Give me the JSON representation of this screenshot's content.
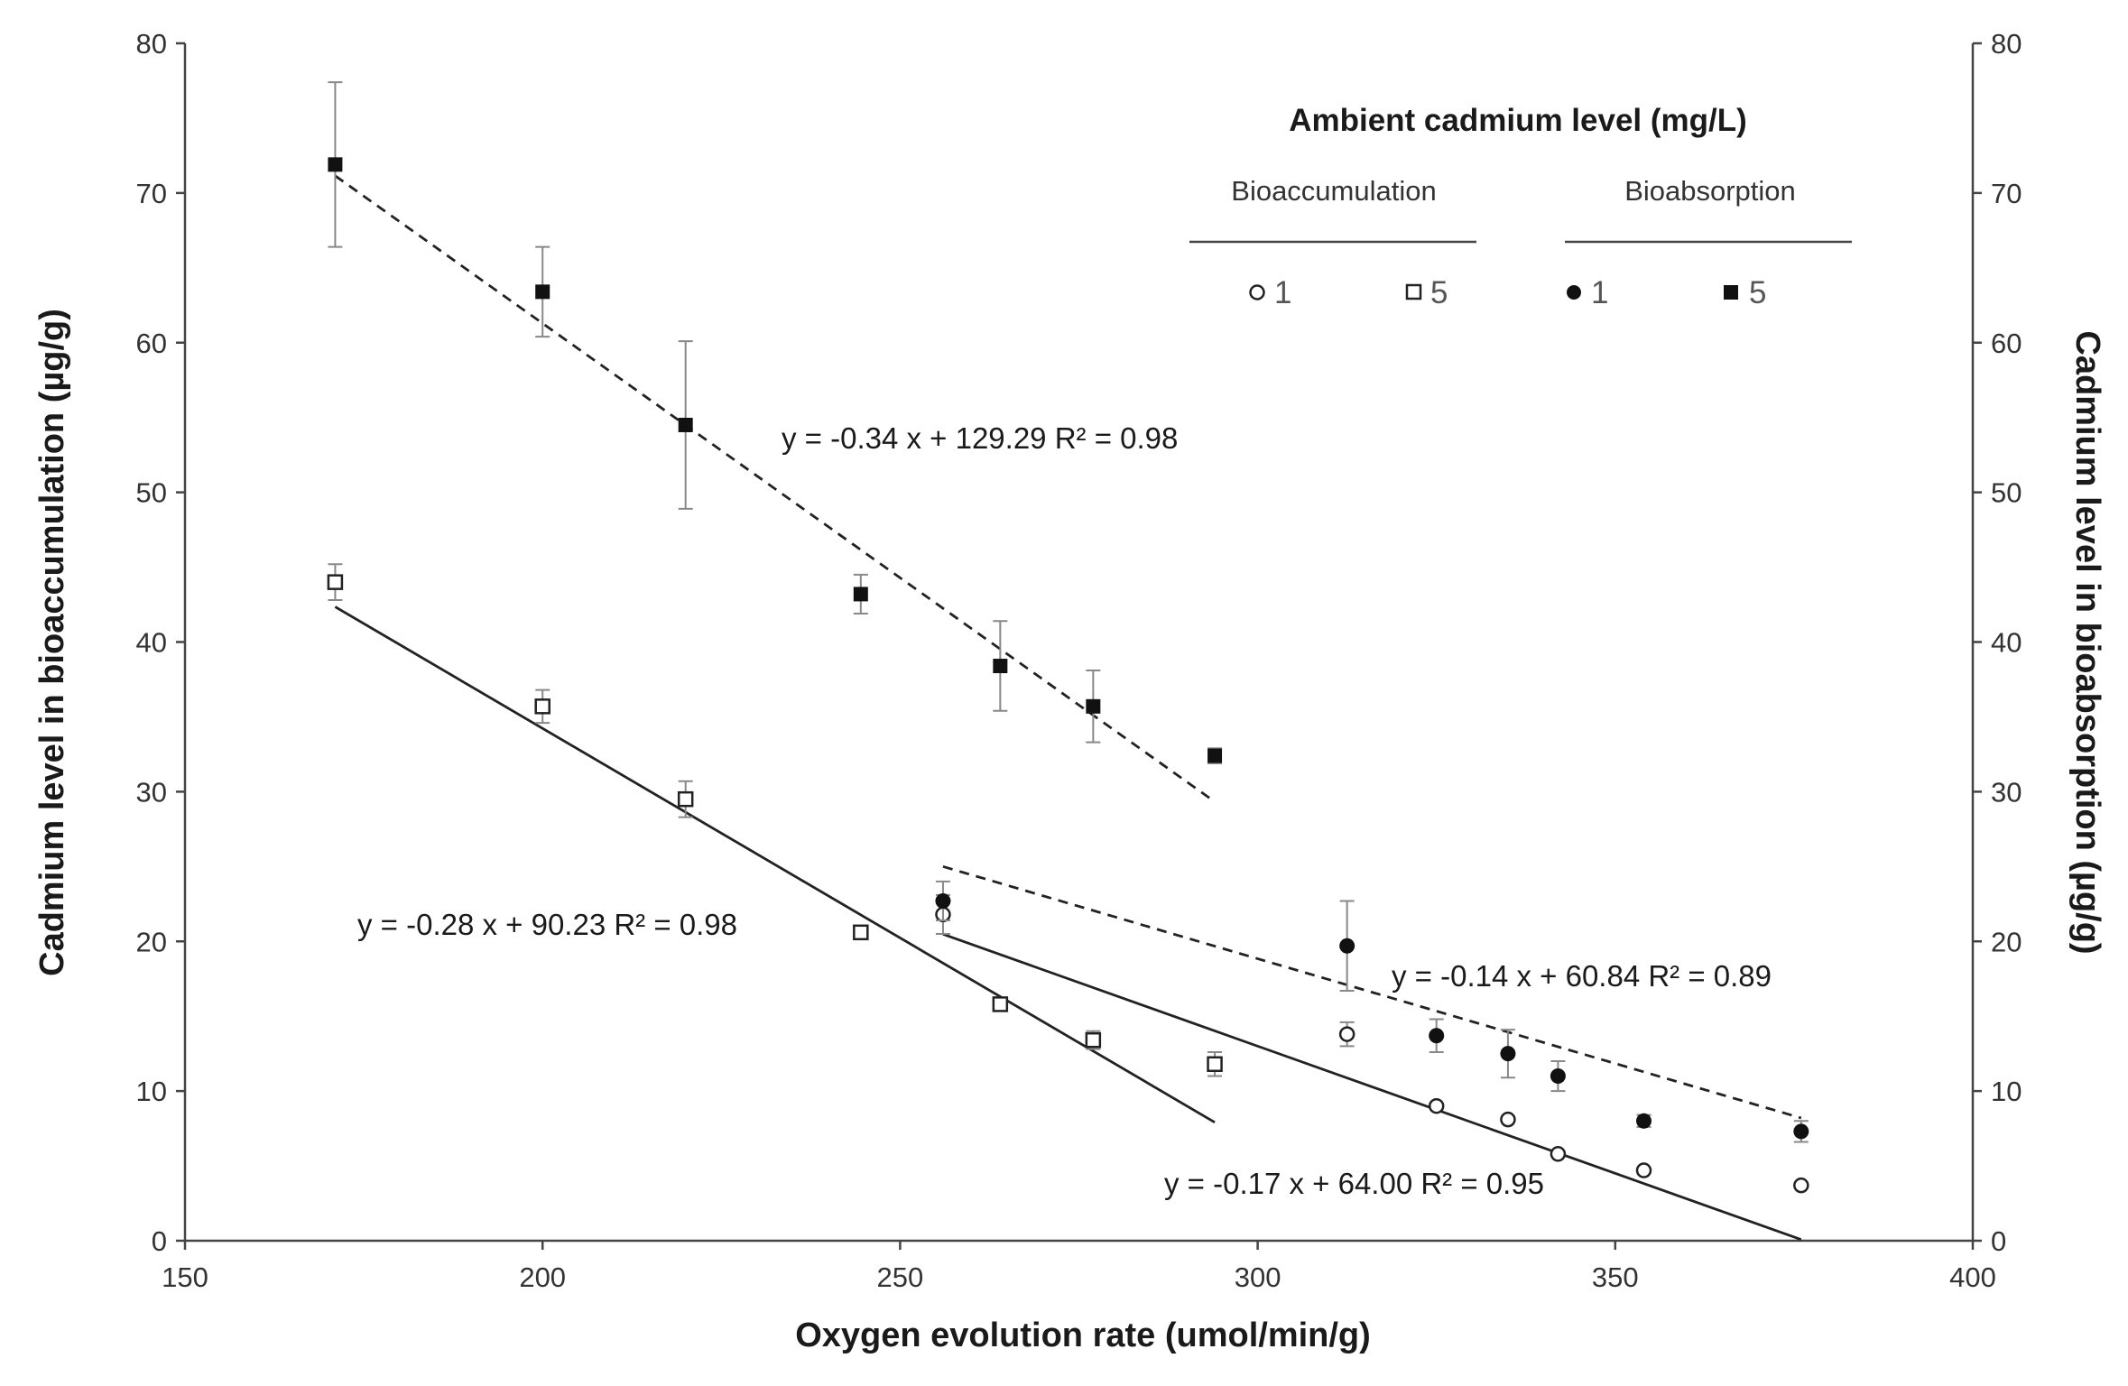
{
  "chart_data": {
    "type": "scatter",
    "title": "",
    "xlabel": "Oxygen evolution rate  (umol/min/g)",
    "ylabel_left": "Cadmium level in bioaccumulation (µg/g)",
    "ylabel_right": "Cadmium level in bioabsorption (µg/g)",
    "xlim": [
      150,
      400
    ],
    "ylim": [
      0,
      80
    ],
    "x_ticks": [
      150,
      200,
      250,
      300,
      350,
      400
    ],
    "y_ticks": [
      0,
      10,
      20,
      30,
      40,
      50,
      60,
      70,
      80
    ],
    "grid": false,
    "legend": {
      "title": "Ambient cadmium level (mg/L)",
      "groups": [
        "Bioaccumulation",
        "Bioabsorption"
      ],
      "entries": [
        {
          "group": "Bioaccumulation",
          "marker": "open-circle",
          "label": "1"
        },
        {
          "group": "Bioaccumulation",
          "marker": "open-square",
          "label": "5"
        },
        {
          "group": "Bioabsorption",
          "marker": "filled-circle",
          "label": "1"
        },
        {
          "group": "Bioabsorption",
          "marker": "filled-square",
          "label": "5"
        }
      ],
      "placement": "top-right"
    },
    "series": [
      {
        "name": "Bioaccumulation 1 mg/L",
        "marker": "open-circle",
        "x": [
          256,
          312.5,
          325,
          335,
          342,
          354,
          376
        ],
        "y": [
          21.8,
          13.8,
          9.0,
          8.1,
          5.8,
          4.7,
          3.7
        ],
        "err": [
          1.3,
          0.8,
          0,
          0,
          0,
          0,
          0
        ],
        "fit": {
          "slope": -0.17,
          "intercept": 64.0,
          "x_range": [
            256,
            376
          ],
          "style": "solid",
          "equation": "y = -0.17 x + 64.00  R² = 0.95"
        }
      },
      {
        "name": "Bioaccumulation 5 mg/L",
        "marker": "open-square",
        "x": [
          171,
          200,
          220,
          244.5,
          264,
          277,
          294
        ],
        "y": [
          44.0,
          35.7,
          29.5,
          20.6,
          15.8,
          13.4,
          11.8
        ],
        "err": [
          1.2,
          1.1,
          1.2,
          0,
          0,
          0.6,
          0.8
        ],
        "fit": {
          "slope": -0.28,
          "intercept": 90.23,
          "x_range": [
            171,
            294
          ],
          "style": "solid",
          "equation": "y = -0.28 x + 90.23  R² = 0.98"
        }
      },
      {
        "name": "Bioabsorption 1 mg/L",
        "marker": "filled-circle",
        "x": [
          256,
          312.5,
          325,
          335,
          342,
          354,
          376
        ],
        "y": [
          22.7,
          19.7,
          13.7,
          12.5,
          11.0,
          8.0,
          7.3
        ],
        "err": [
          1.3,
          3.0,
          1.1,
          1.6,
          1.0,
          0.4,
          0.7
        ],
        "fit": {
          "slope": -0.14,
          "intercept": 60.84,
          "x_range": [
            256,
            376
          ],
          "style": "dashed",
          "equation": "y = -0.14 x + 60.84  R² = 0.89"
        }
      },
      {
        "name": "Bioabsorption 5 mg/L",
        "marker": "filled-square",
        "x": [
          171,
          200,
          220,
          244.5,
          264,
          277,
          294
        ],
        "y": [
          71.9,
          63.4,
          54.5,
          43.2,
          38.4,
          35.7,
          32.4
        ],
        "err": [
          5.5,
          3.0,
          5.6,
          1.3,
          3.0,
          2.4,
          0.5
        ],
        "fit": {
          "slope": -0.34,
          "intercept": 129.29,
          "x_range": [
            171,
            294
          ],
          "style": "dashed",
          "equation": "y = -0.34 x + 129.29  R² = 0.98"
        }
      }
    ]
  }
}
